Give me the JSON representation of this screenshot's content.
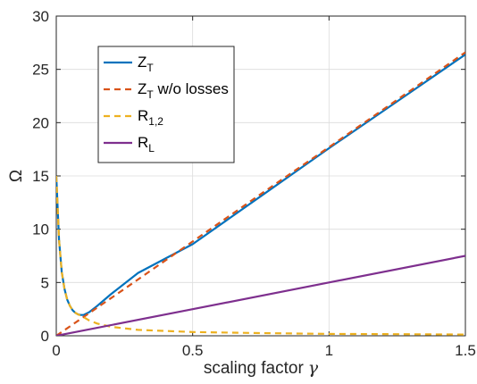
{
  "chart_data": {
    "type": "line",
    "xlabel": "scaling factor",
    "xlabel_symbol": "γ",
    "ylabel": "Ω",
    "xlim": [
      0,
      1.5
    ],
    "ylim": [
      0,
      30
    ],
    "xticks": [
      "0",
      "0.5",
      "1",
      "1.5"
    ],
    "yticks": [
      "0",
      "5",
      "10",
      "15",
      "20",
      "25",
      "30"
    ],
    "grid": true,
    "legend_position": "top-left",
    "series": [
      {
        "name": "Z_T",
        "legend_main": "Z",
        "legend_sub": "T",
        "legend_suffix": "",
        "color": "#0072BD",
        "dash": "solid",
        "x": [
          0.0,
          0.01,
          0.02,
          0.03,
          0.04,
          0.05,
          0.06,
          0.07,
          0.08,
          0.09,
          0.1,
          0.12,
          0.15,
          0.2,
          0.3,
          0.5,
          0.75,
          1.0,
          1.25,
          1.5
        ],
        "y": [
          15.0,
          9.0,
          6.0,
          4.4,
          3.4,
          2.8,
          2.4,
          2.15,
          2.0,
          1.95,
          1.95,
          2.2,
          2.8,
          3.9,
          5.9,
          8.6,
          13.1,
          17.6,
          22.0,
          26.4
        ]
      },
      {
        "name": "Z_T w/o losses",
        "legend_main": "Z",
        "legend_sub": "T",
        "legend_suffix": " w/o losses",
        "color": "#D95319",
        "dash": "dashed",
        "x": [
          0.0,
          0.25,
          0.5,
          0.75,
          1.0,
          1.25,
          1.5
        ],
        "y": [
          0.0,
          4.4,
          8.85,
          13.3,
          17.7,
          22.15,
          26.6
        ]
      },
      {
        "name": "R_{1,2}",
        "legend_main": "R",
        "legend_sub": "1,2",
        "legend_suffix": "",
        "color": "#EDB120",
        "dash": "dashed",
        "x": [
          0.0,
          0.01,
          0.02,
          0.03,
          0.04,
          0.05,
          0.06,
          0.07,
          0.08,
          0.09,
          0.1,
          0.12,
          0.15,
          0.2,
          0.3,
          0.5,
          0.75,
          1.0,
          1.25,
          1.5
        ],
        "y": [
          15.0,
          9.0,
          6.0,
          4.4,
          3.4,
          2.8,
          2.4,
          2.15,
          2.0,
          1.9,
          1.75,
          1.45,
          1.15,
          0.85,
          0.55,
          0.35,
          0.25,
          0.18,
          0.15,
          0.12
        ]
      },
      {
        "name": "R_L",
        "legend_main": "R",
        "legend_sub": "L",
        "legend_suffix": "",
        "color": "#7E2F8E",
        "dash": "solid",
        "x": [
          0.0,
          0.5,
          1.0,
          1.5
        ],
        "y": [
          0.0,
          2.5,
          5.0,
          7.5
        ]
      }
    ]
  }
}
